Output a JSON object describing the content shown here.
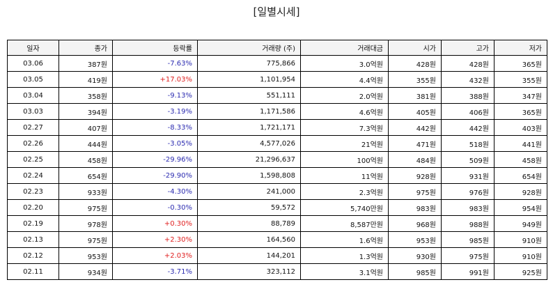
{
  "title": "[일별시세]",
  "columns": [
    "일자",
    "종가",
    "등락률",
    "거래량 (주)",
    "거래대금",
    "시가",
    "고가",
    "저가"
  ],
  "colors": {
    "rise": "#e02020",
    "fall": "#2a2ab0"
  },
  "rows": [
    {
      "date": "03.06",
      "close": "387원",
      "change": "-7.63%",
      "dir": "down",
      "volume": "775,866",
      "amount": "3.0억원",
      "open": "428원",
      "high": "428원",
      "low": "365원"
    },
    {
      "date": "03.05",
      "close": "419원",
      "change": "+17.03%",
      "dir": "up",
      "volume": "1,101,954",
      "amount": "4.4억원",
      "open": "355원",
      "high": "432원",
      "low": "355원"
    },
    {
      "date": "03.04",
      "close": "358원",
      "change": "-9.13%",
      "dir": "down",
      "volume": "551,111",
      "amount": "2.0억원",
      "open": "381원",
      "high": "388원",
      "low": "347원"
    },
    {
      "date": "03.03",
      "close": "394원",
      "change": "-3.19%",
      "dir": "down",
      "volume": "1,171,586",
      "amount": "4.6억원",
      "open": "405원",
      "high": "406원",
      "low": "365원"
    },
    {
      "date": "02.27",
      "close": "407원",
      "change": "-8.33%",
      "dir": "down",
      "volume": "1,721,171",
      "amount": "7.3억원",
      "open": "442원",
      "high": "442원",
      "low": "403원"
    },
    {
      "date": "02.26",
      "close": "444원",
      "change": "-3.05%",
      "dir": "down",
      "volume": "4,577,026",
      "amount": "21억원",
      "open": "471원",
      "high": "518원",
      "low": "441원"
    },
    {
      "date": "02.25",
      "close": "458원",
      "change": "-29.96%",
      "dir": "down",
      "volume": "21,296,637",
      "amount": "100억원",
      "open": "484원",
      "high": "509원",
      "low": "458원"
    },
    {
      "date": "02.24",
      "close": "654원",
      "change": "-29.90%",
      "dir": "down",
      "volume": "1,598,808",
      "amount": "11억원",
      "open": "928원",
      "high": "931원",
      "low": "654원"
    },
    {
      "date": "02.23",
      "close": "933원",
      "change": "-4.30%",
      "dir": "down",
      "volume": "241,000",
      "amount": "2.3억원",
      "open": "975원",
      "high": "976원",
      "low": "928원"
    },
    {
      "date": "02.20",
      "close": "975원",
      "change": "-0.30%",
      "dir": "down",
      "volume": "59,572",
      "amount": "5,740만원",
      "open": "983원",
      "high": "983원",
      "low": "954원"
    },
    {
      "date": "02.19",
      "close": "978원",
      "change": "+0.30%",
      "dir": "up",
      "volume": "88,789",
      "amount": "8,587만원",
      "open": "968원",
      "high": "988원",
      "low": "949원"
    },
    {
      "date": "02.13",
      "close": "975원",
      "change": "+2.30%",
      "dir": "up",
      "volume": "164,560",
      "amount": "1.6억원",
      "open": "953원",
      "high": "985원",
      "low": "910원"
    },
    {
      "date": "02.12",
      "close": "953원",
      "change": "+2.03%",
      "dir": "up",
      "volume": "144,201",
      "amount": "1.3억원",
      "open": "930원",
      "high": "975원",
      "low": "910원"
    },
    {
      "date": "02.11",
      "close": "934원",
      "change": "-3.71%",
      "dir": "down",
      "volume": "323,112",
      "amount": "3.1억원",
      "open": "985원",
      "high": "991원",
      "low": "925원"
    }
  ]
}
